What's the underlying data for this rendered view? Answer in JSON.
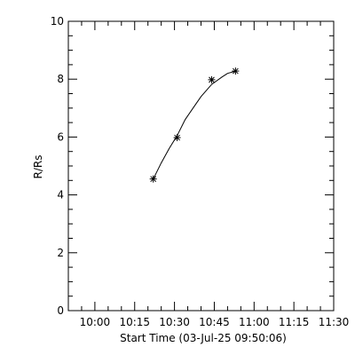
{
  "chart_data": {
    "type": "scatter",
    "xlabel": "Start Time (03-Jul-25 09:50:06)",
    "ylabel": "R/Rs",
    "xlim": [
      "09:50",
      "11:30"
    ],
    "ylim": [
      0,
      10
    ],
    "x_tick_labels": [
      "10:00",
      "10:15",
      "10:30",
      "10:45",
      "11:00",
      "11:15",
      "11:30"
    ],
    "y_tick_labels": [
      "0",
      "2",
      "4",
      "6",
      "8",
      "10"
    ],
    "x_minor_step_minutes": 5,
    "y_minor_step": 0.5,
    "grid": false,
    "series": [
      {
        "marker": "asterisk",
        "points": [
          {
            "x": "10:22",
            "y": 4.55
          },
          {
            "x": "10:31",
            "y": 5.98
          },
          {
            "x": "10:44",
            "y": 7.98
          },
          {
            "x": "10:53",
            "y": 8.28
          }
        ]
      }
    ],
    "fit_curve": {
      "style": "solid",
      "points": [
        {
          "x": "10:22",
          "y": 4.55
        },
        {
          "x": "10:25",
          "y": 5.1
        },
        {
          "x": "10:28",
          "y": 5.6
        },
        {
          "x": "10:31",
          "y": 6.05
        },
        {
          "x": "10:34",
          "y": 6.6
        },
        {
          "x": "10:37",
          "y": 7.0
        },
        {
          "x": "10:40",
          "y": 7.4
        },
        {
          "x": "10:44",
          "y": 7.82
        },
        {
          "x": "10:48",
          "y": 8.08
        },
        {
          "x": "10:50",
          "y": 8.2
        },
        {
          "x": "10:53",
          "y": 8.28
        }
      ]
    }
  }
}
